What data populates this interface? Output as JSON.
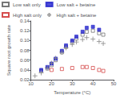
{
  "chart_data": {
    "type": "scatter",
    "xlabel": "Temperature (°C)",
    "ylabel": "Square root growth rate",
    "xlim": [
      10,
      50
    ],
    "ylim": [
      0.02,
      0.14
    ],
    "xticks": [
      10,
      20,
      30,
      40,
      50
    ],
    "yticks": [
      0.02,
      0.04,
      0.06,
      0.08,
      {
        "value": 0.1,
        "label": "0.10"
      },
      0.12,
      0.14
    ],
    "grid": false,
    "legend": "upper left",
    "series": [
      {
        "name": "Low salt only",
        "color": "#555555",
        "marker": "open_square",
        "x": [
          15,
          18,
          20,
          22,
          25,
          27,
          30,
          32,
          35,
          37,
          40,
          43,
          45
        ],
        "values": [
          0.038,
          0.043,
          0.05,
          0.06,
          0.076,
          0.087,
          0.097,
          0.104,
          0.112,
          0.118,
          0.12,
          0.115,
          0.112
        ]
      },
      {
        "name": "Low salt + betaine",
        "color": "#2222cc",
        "marker": "square",
        "x": [
          15,
          18,
          20,
          22,
          25,
          27,
          30,
          32,
          35,
          37,
          40,
          43
        ],
        "values": [
          0.04,
          0.046,
          0.053,
          0.063,
          0.079,
          0.09,
          0.1,
          0.108,
          0.118,
          0.126,
          0.128,
          0.122
        ]
      },
      {
        "name": "High salt only",
        "color": "#cc2222",
        "marker": "open_square",
        "x": [
          20,
          25,
          30,
          35,
          37,
          40,
          43,
          45
        ],
        "values": [
          0.04,
          0.042,
          0.044,
          0.046,
          0.046,
          0.044,
          0.04,
          0.038
        ]
      },
      {
        "name": "High salt + betaine",
        "color": "#888888",
        "marker": "plus",
        "x": [
          12,
          15,
          18,
          20,
          22,
          25,
          27,
          30,
          32,
          35,
          37,
          40,
          43,
          45
        ],
        "values": [
          0.028,
          0.034,
          0.044,
          0.054,
          0.064,
          0.076,
          0.085,
          0.092,
          0.097,
          0.102,
          0.106,
          0.103,
          0.098,
          0.094
        ]
      }
    ]
  }
}
